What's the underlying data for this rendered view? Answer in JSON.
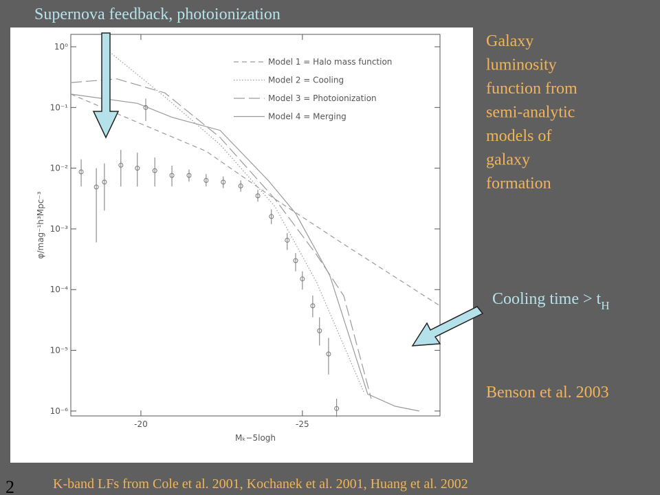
{
  "slide": {
    "top_note": "Supernova feedback, photoionization",
    "side_title": [
      "Galaxy",
      "luminosity",
      "function from",
      "semi-analytic",
      "models of",
      "galaxy",
      "formation"
    ],
    "cooling_note": {
      "text": "Cooling time > t",
      "subscript": "H"
    },
    "reference": "Benson et al. 2003",
    "footer": "K-band LFs from Cole et al. 2001, Kochanek et al. 2001, Huang et al. 2002",
    "page": "2"
  },
  "chart_data": {
    "type": "line",
    "log_y": true,
    "legend": "upper right",
    "xlabel": "Mₖ−5logh",
    "ylabel": "φ/mag⁻¹h³Mpc⁻³",
    "xlim": [
      -17.83,
      -29.26
    ],
    "ylim": [
      8.3e-07,
      1.6
    ],
    "xticks": [
      -20,
      -25
    ],
    "yticks": [
      {
        "value": 1,
        "label": "10⁰"
      },
      {
        "value": 0.1,
        "label": "10⁻¹"
      },
      {
        "value": 0.01,
        "label": "10⁻²"
      },
      {
        "value": 0.001,
        "label": "10⁻³"
      },
      {
        "value": 0.0001,
        "label": "10⁻⁴"
      },
      {
        "value": 1e-05,
        "label": "10⁻⁵"
      },
      {
        "value": 1e-06,
        "label": "10⁻⁶"
      }
    ],
    "series": [
      {
        "name": "Model 1 = Halo mass function",
        "color": "#9a9a9a",
        "style": "dashed",
        "x": [
          -17.83,
          -20,
          -22.02,
          -24.15,
          -26.28,
          -29.26
        ],
        "values": [
          0.166,
          0.054,
          0.019,
          0.0031,
          0.00056,
          5.4e-05
        ]
      },
      {
        "name": "Model 2 = Cooling",
        "color": "#9a9a9a",
        "style": "dotted",
        "x": [
          -18.83,
          -20.74,
          -22.45,
          -24.15,
          -25.43,
          -26.91
        ],
        "values": [
          1.0,
          0.15,
          0.0245,
          0.00234,
          0.000135,
          2e-06
        ]
      },
      {
        "name": "Model 3 = Photoionization",
        "color": "#9a9a9a",
        "style": "long-dashed",
        "x": [
          -17.83,
          -19.26,
          -20.74,
          -22.45,
          -24.15,
          -25.43,
          -26.28,
          -27.13
        ],
        "values": [
          0.257,
          0.295,
          0.174,
          0.032,
          0.0031,
          0.00038,
          7.9e-05,
          1.6e-06
        ]
      },
      {
        "name": "Model 4 = Merging",
        "color": "#9a9a9a",
        "style": "solid",
        "x": [
          -17.83,
          -19.89,
          -20.96,
          -22.45,
          -23.94,
          -24.79,
          -25.85,
          -27.02,
          -27.87,
          -28.62
        ],
        "values": [
          0.166,
          0.117,
          0.069,
          0.042,
          0.0063,
          0.0018,
          0.00017,
          1.9e-06,
          1.2e-06,
          1e-06
        ]
      }
    ],
    "points": {
      "color": "#777777",
      "x": [
        -18.15,
        -18.62,
        -18.87,
        -19.38,
        -19.89,
        -20.15,
        -20.43,
        -20.96,
        -21.49,
        -22.02,
        -22.55,
        -23.09,
        -23.62,
        -24.04,
        -24.53,
        -24.79,
        -25.0,
        -25.32,
        -25.53,
        -25.81,
        -26.06
      ],
      "values": [
        0.0087,
        0.0049,
        0.0059,
        0.0112,
        0.01,
        0.1,
        0.0091,
        0.0076,
        0.0076,
        0.0063,
        0.0059,
        0.0051,
        0.0035,
        0.0016,
        0.00065,
        0.0003,
        0.00015,
        5.4e-05,
        2.1e-05,
        8.7e-06,
        1.1e-06
      ],
      "lower": [
        0.005,
        0.0006,
        0.002,
        0.005,
        0.005,
        0.06,
        0.005,
        0.005,
        0.006,
        0.005,
        0.0047,
        0.0041,
        0.0028,
        0.0012,
        0.00045,
        0.0002,
        0.0001,
        3.5e-05,
        1.2e-05,
        4e-06,
        8e-07
      ],
      "upper": [
        0.014,
        0.01,
        0.012,
        0.02,
        0.018,
        0.14,
        0.015,
        0.011,
        0.0095,
        0.008,
        0.0073,
        0.0063,
        0.0044,
        0.0021,
        0.00085,
        0.0004,
        0.0002,
        8e-05,
        3.5e-05,
        1.6e-05,
        1.6e-06
      ]
    }
  }
}
